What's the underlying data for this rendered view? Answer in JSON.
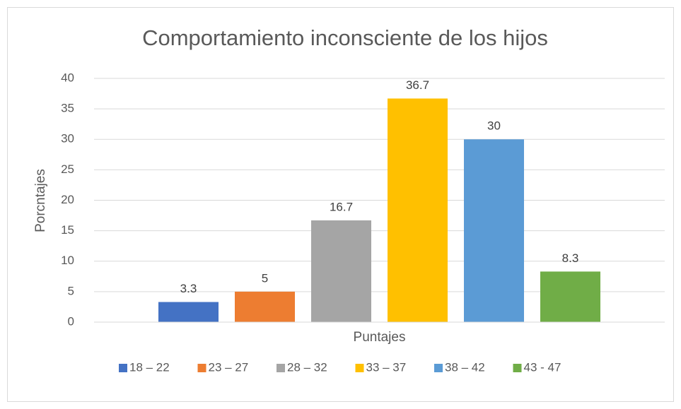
{
  "chart_data": {
    "type": "bar",
    "title": "Comportamiento inconsciente de los hijos",
    "y_label": "Porcntajes",
    "categories": [
      "Puntajes"
    ],
    "series": [
      {
        "name": "18 – 22",
        "color": "#4472c4",
        "values": [
          3.3
        ]
      },
      {
        "name": "23 – 27",
        "color": "#ed7d31",
        "values": [
          5
        ]
      },
      {
        "name": "28 – 32",
        "color": "#a5a5a5",
        "values": [
          16.7
        ]
      },
      {
        "name": "33 – 37",
        "color": "#ffc000",
        "values": [
          36.7
        ]
      },
      {
        "name": "38 – 42",
        "color": "#5b9bd5",
        "values": [
          30
        ]
      },
      {
        "name": "43 - 47",
        "color": "#70ad47",
        "values": [
          8.3
        ]
      }
    ],
    "ylim": [
      0,
      40
    ],
    "yticks": [
      0,
      5,
      10,
      15,
      20,
      25,
      30,
      35,
      40
    ],
    "grid": true,
    "legend": "bottom"
  }
}
